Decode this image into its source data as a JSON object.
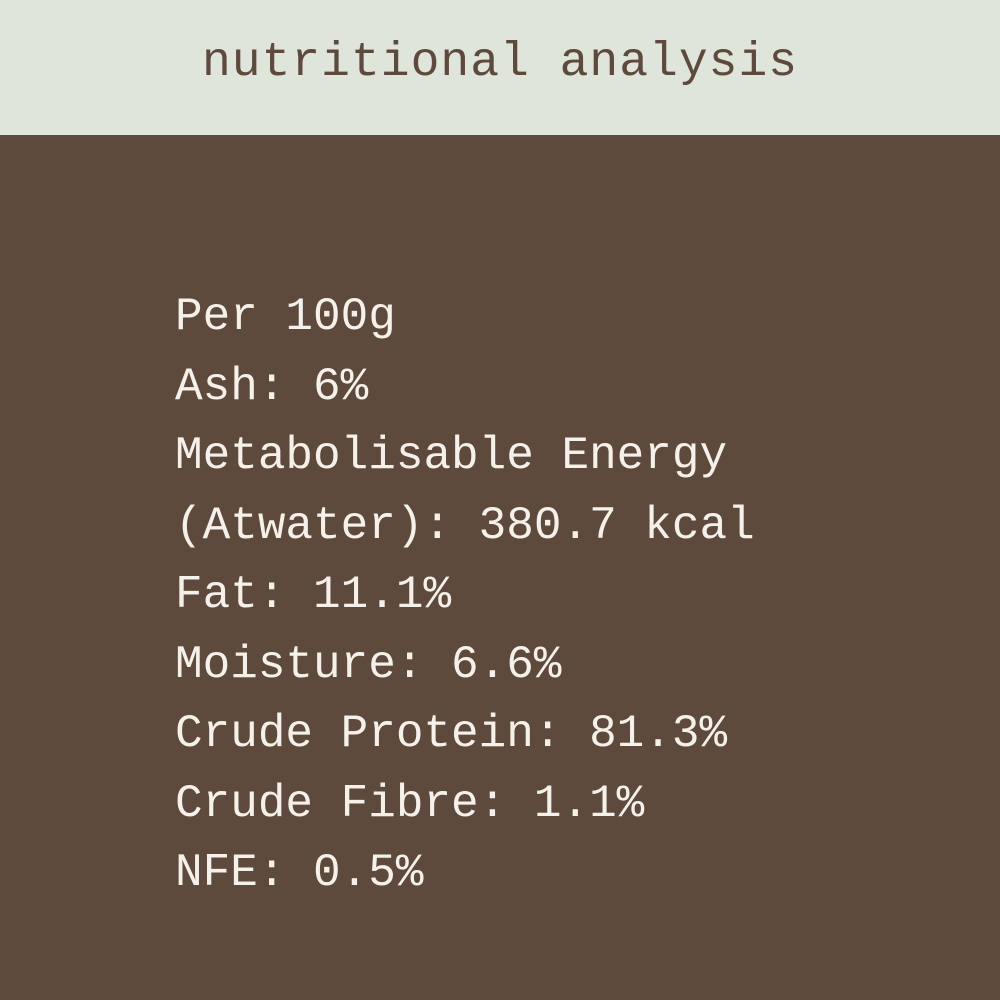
{
  "header": {
    "title": "nutritional analysis"
  },
  "lines": [
    "Per 100g",
    "Ash: 6%",
    "Metabolisable Energy",
    "(Atwater): 380.7 kcal",
    "Fat: 11.1%",
    "Moisture: 6.6%",
    "Crude Protein: 81.3%",
    "Crude Fibre: 1.1%",
    "NFE: 0.5%"
  ]
}
